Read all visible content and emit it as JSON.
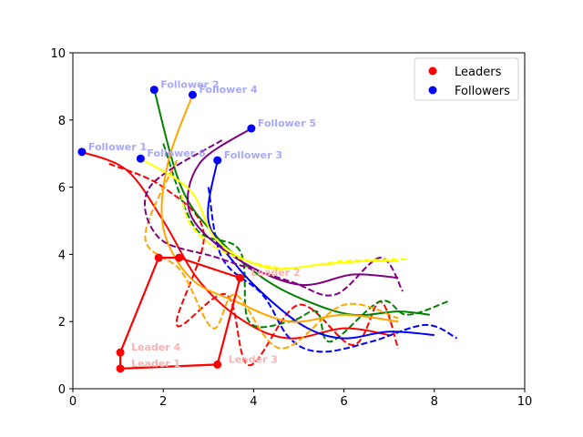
{
  "chart_data": {
    "type": "line",
    "title": "",
    "xlabel": "",
    "ylabel": "",
    "xlim": [
      0,
      10
    ],
    "ylim": [
      0,
      10
    ],
    "x_ticks": [
      "0",
      "2",
      "4",
      "6",
      "8",
      "10"
    ],
    "y_ticks": [
      "0",
      "2",
      "4",
      "6",
      "8",
      "10"
    ],
    "grid": false,
    "legend_position": "top-right",
    "legend": [
      {
        "label": "Leaders",
        "color": "#ff0000"
      },
      {
        "label": "Followers",
        "color": "#0000ff"
      }
    ],
    "leader_polygon": {
      "color": "#ff0000",
      "points": [
        [
          1.05,
          0.6
        ],
        [
          3.2,
          0.72
        ],
        [
          3.7,
          3.3
        ],
        [
          2.35,
          3.9
        ],
        [
          1.9,
          3.9
        ],
        [
          1.05,
          1.08
        ],
        [
          1.05,
          0.6
        ]
      ]
    },
    "leaders": [
      {
        "label": "Leader 1",
        "x": 1.05,
        "y": 0.6
      },
      {
        "label": "Leader 2",
        "x": 3.7,
        "y": 3.3
      },
      {
        "label": "Leader 3",
        "x": 3.2,
        "y": 0.72
      },
      {
        "label": "Leader 4",
        "x": 1.05,
        "y": 1.08
      },
      {
        "label": "",
        "x": 1.9,
        "y": 3.9
      },
      {
        "label": "",
        "x": 2.35,
        "y": 3.9
      }
    ],
    "followers": [
      {
        "label": "Follower 1",
        "x": 0.2,
        "y": 7.05
      },
      {
        "label": "Follower 2",
        "x": 1.8,
        "y": 8.9
      },
      {
        "label": "Follower 3",
        "x": 3.2,
        "y": 6.8
      },
      {
        "label": "Follower 4",
        "x": 2.65,
        "y": 8.75
      },
      {
        "label": "Follower 5",
        "x": 3.95,
        "y": 7.75
      },
      {
        "label": "Follower 6",
        "x": 1.5,
        "y": 6.85
      }
    ],
    "trajectories": [
      {
        "color": "#ff0000",
        "dashed": false,
        "points": [
          [
            0.2,
            7.05
          ],
          [
            1.2,
            6.5
          ],
          [
            2.0,
            5.0
          ],
          [
            2.8,
            3.2
          ],
          [
            3.8,
            2.0
          ],
          [
            4.8,
            1.5
          ],
          [
            6.0,
            1.8
          ],
          [
            7.0,
            1.6
          ]
        ]
      },
      {
        "color": "#ff0000",
        "dashed": true,
        "points": [
          [
            0.8,
            6.7
          ],
          [
            2.0,
            6.0
          ],
          [
            2.9,
            4.6
          ],
          [
            2.3,
            1.9
          ],
          [
            3.4,
            2.8
          ],
          [
            3.9,
            0.7
          ],
          [
            5.0,
            2.5
          ],
          [
            6.2,
            1.3
          ],
          [
            6.8,
            2.6
          ],
          [
            7.2,
            1.2
          ]
        ]
      },
      {
        "color": "#008000",
        "dashed": false,
        "points": [
          [
            1.8,
            8.9
          ],
          [
            2.4,
            6.0
          ],
          [
            3.2,
            4.5
          ],
          [
            4.2,
            3.3
          ],
          [
            5.2,
            2.6
          ],
          [
            6.2,
            2.2
          ],
          [
            7.2,
            2.3
          ],
          [
            7.9,
            2.2
          ]
        ]
      },
      {
        "color": "#008000",
        "dashed": true,
        "points": [
          [
            2.0,
            7.3
          ],
          [
            2.7,
            4.8
          ],
          [
            3.7,
            4.1
          ],
          [
            3.9,
            2.0
          ],
          [
            4.8,
            2.0
          ],
          [
            5.4,
            2.3
          ],
          [
            5.7,
            1.4
          ],
          [
            6.8,
            2.6
          ],
          [
            7.4,
            2.2
          ],
          [
            8.3,
            2.6
          ]
        ]
      },
      {
        "color": "#0000ff",
        "dashed": false,
        "points": [
          [
            3.2,
            6.8
          ],
          [
            3.0,
            5.0
          ],
          [
            3.6,
            3.7
          ],
          [
            4.4,
            2.6
          ],
          [
            5.2,
            1.8
          ],
          [
            6.0,
            1.5
          ],
          [
            7.0,
            1.7
          ],
          [
            8.0,
            1.6
          ]
        ]
      },
      {
        "color": "#0000ff",
        "dashed": true,
        "points": [
          [
            3.0,
            6.0
          ],
          [
            3.3,
            3.9
          ],
          [
            4.2,
            2.8
          ],
          [
            4.8,
            1.5
          ],
          [
            5.5,
            1.1
          ],
          [
            6.6,
            1.4
          ],
          [
            7.8,
            1.9
          ],
          [
            8.5,
            1.5
          ]
        ]
      },
      {
        "color": "#ffa500",
        "dashed": false,
        "points": [
          [
            2.65,
            8.75
          ],
          [
            2.1,
            6.7
          ],
          [
            2.0,
            4.8
          ],
          [
            2.6,
            3.3
          ],
          [
            3.6,
            2.6
          ],
          [
            4.8,
            2.0
          ],
          [
            6.0,
            2.2
          ],
          [
            7.2,
            2.0
          ]
        ]
      },
      {
        "color": "#ffa500",
        "dashed": true,
        "points": [
          [
            2.3,
            6.8
          ],
          [
            1.6,
            4.5
          ],
          [
            2.4,
            3.5
          ],
          [
            3.1,
            1.8
          ],
          [
            3.6,
            2.8
          ],
          [
            4.6,
            1.2
          ],
          [
            6.0,
            2.5
          ],
          [
            7.2,
            2.1
          ]
        ]
      },
      {
        "color": "#800080",
        "dashed": false,
        "points": [
          [
            3.95,
            7.75
          ],
          [
            2.8,
            6.7
          ],
          [
            2.6,
            5.2
          ],
          [
            3.6,
            3.9
          ],
          [
            5.0,
            3.1
          ],
          [
            6.2,
            3.4
          ],
          [
            7.2,
            3.3
          ]
        ]
      },
      {
        "color": "#800080",
        "dashed": true,
        "points": [
          [
            3.3,
            7.4
          ],
          [
            1.7,
            6.0
          ],
          [
            1.9,
            4.5
          ],
          [
            3.2,
            3.9
          ],
          [
            4.8,
            3.2
          ],
          [
            5.8,
            2.8
          ],
          [
            6.8,
            3.9
          ],
          [
            7.3,
            2.9
          ]
        ]
      },
      {
        "color": "#ffff00",
        "dashed": false,
        "points": [
          [
            1.5,
            6.85
          ],
          [
            2.6,
            5.9
          ],
          [
            3.2,
            4.4
          ],
          [
            4.3,
            3.6
          ],
          [
            5.5,
            3.7
          ],
          [
            6.5,
            3.8
          ],
          [
            7.2,
            3.8
          ]
        ]
      },
      {
        "color": "#ffff00",
        "dashed": true,
        "points": [
          [
            2.4,
            5.8
          ],
          [
            2.6,
            4.9
          ],
          [
            3.3,
            4.1
          ],
          [
            4.6,
            3.6
          ],
          [
            6.0,
            3.8
          ],
          [
            7.4,
            3.85
          ]
        ]
      }
    ]
  }
}
